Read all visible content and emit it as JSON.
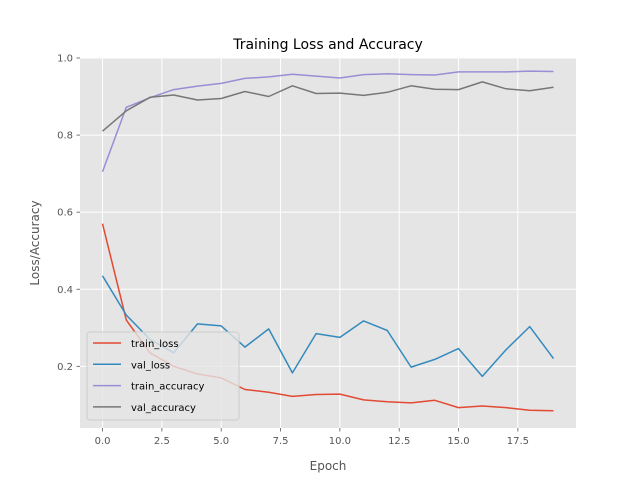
{
  "chart_data": {
    "type": "line",
    "title": "Training Loss and Accuracy",
    "xlabel": "Epoch",
    "ylabel": "Loss/Accuracy",
    "xlim": [
      -0.95,
      19.95
    ],
    "ylim": [
      0.04,
      1.0
    ],
    "x_ticks": [
      0.0,
      2.5,
      5.0,
      7.5,
      10.0,
      12.5,
      15.0,
      17.5
    ],
    "x_tick_labels": [
      "0.0",
      "2.5",
      "5.0",
      "7.5",
      "10.0",
      "12.5",
      "15.0",
      "17.5"
    ],
    "y_ticks": [
      0.2,
      0.4,
      0.6,
      0.8,
      1.0
    ],
    "y_tick_labels": [
      "0.2",
      "0.4",
      "0.6",
      "0.8",
      "1.0"
    ],
    "grid": true,
    "legend_position": "lower-left",
    "x": [
      0,
      1,
      2,
      3,
      4,
      5,
      6,
      7,
      8,
      9,
      10,
      11,
      12,
      13,
      14,
      15,
      16,
      17,
      18,
      19
    ],
    "series": [
      {
        "name": "train_loss",
        "color": "#E24A33",
        "values": [
          0.57,
          0.32,
          0.235,
          0.2,
          0.18,
          0.17,
          0.14,
          0.133,
          0.122,
          0.127,
          0.128,
          0.113,
          0.108,
          0.105,
          0.112,
          0.093,
          0.097,
          0.093,
          0.086,
          0.085
        ]
      },
      {
        "name": "val_loss",
        "color": "#348ABD",
        "values": [
          0.435,
          0.333,
          0.27,
          0.235,
          0.31,
          0.305,
          0.25,
          0.297,
          0.183,
          0.285,
          0.275,
          0.318,
          0.293,
          0.198,
          0.218,
          0.246,
          0.174,
          0.243,
          0.303,
          0.22
        ]
      },
      {
        "name": "train_accuracy",
        "color": "#988ED5",
        "values": [
          0.705,
          0.872,
          0.897,
          0.918,
          0.927,
          0.934,
          0.947,
          0.951,
          0.958,
          0.953,
          0.948,
          0.957,
          0.959,
          0.957,
          0.956,
          0.964,
          0.964,
          0.964,
          0.966,
          0.965
        ]
      },
      {
        "name": "val_accuracy",
        "color": "#777777",
        "values": [
          0.81,
          0.863,
          0.898,
          0.904,
          0.891,
          0.895,
          0.913,
          0.9,
          0.928,
          0.908,
          0.909,
          0.903,
          0.911,
          0.928,
          0.919,
          0.918,
          0.938,
          0.92,
          0.915,
          0.924
        ]
      }
    ]
  }
}
